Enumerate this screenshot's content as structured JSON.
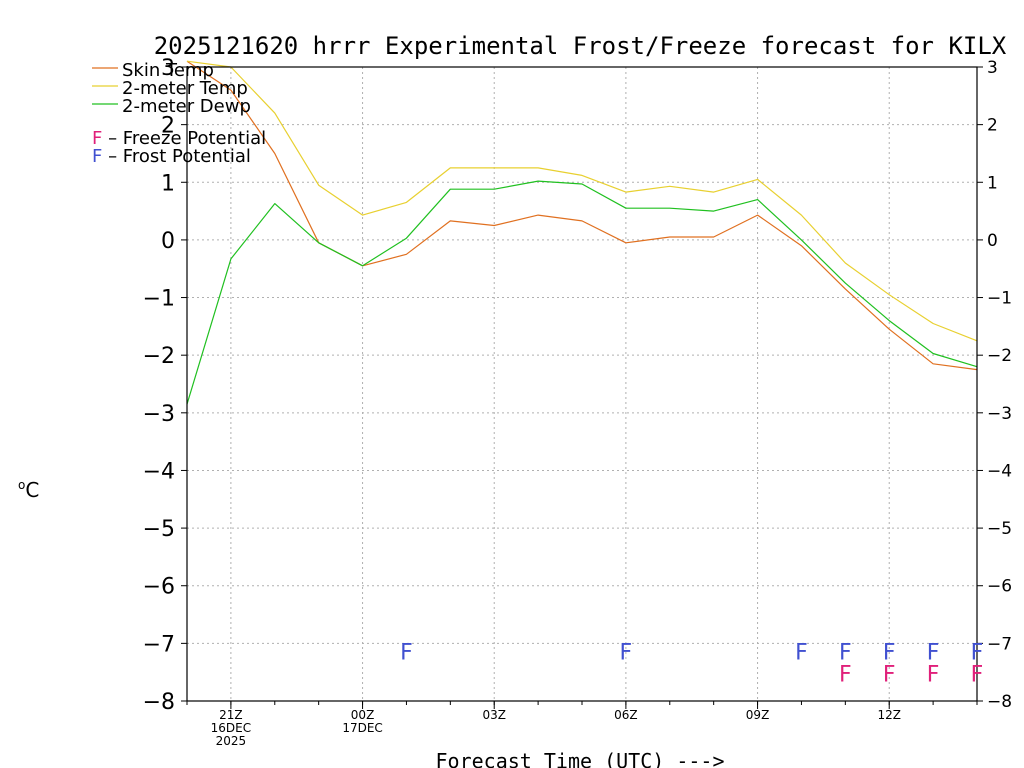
{
  "chart_data": {
    "type": "line",
    "title": "2025121620 hrrr Experimental Frost/Freeze forecast for KILX",
    "xlabel": "Forecast Time (UTC) --->",
    "ylabel_unit": "C",
    "ylabel_degree": "o",
    "ylim": [
      -8,
      3
    ],
    "yticks": [
      3,
      2,
      1,
      0,
      -1,
      -2,
      -3,
      -4,
      -5,
      -6,
      -7,
      -8
    ],
    "ytick_labels": [
      "3",
      "2",
      "1",
      "0",
      "−1",
      "−2",
      "−3",
      "−4",
      "−5",
      "−6",
      "−7",
      "−8"
    ],
    "xlim": [
      0,
      18
    ],
    "x_hours": [
      0,
      1,
      2,
      3,
      4,
      5,
      6,
      7,
      8,
      9,
      10,
      11,
      12,
      13,
      14,
      15,
      16,
      17,
      18
    ],
    "xticks": [
      {
        "hour": 1,
        "lines": [
          "21Z",
          "16DEC",
          "2025"
        ]
      },
      {
        "hour": 4,
        "lines": [
          "00Z",
          "17DEC"
        ]
      },
      {
        "hour": 7,
        "lines": [
          "03Z"
        ]
      },
      {
        "hour": 10,
        "lines": [
          "06Z"
        ]
      },
      {
        "hour": 13,
        "lines": [
          "09Z"
        ]
      },
      {
        "hour": 16,
        "lines": [
          "12Z"
        ]
      }
    ],
    "grid": true,
    "series": [
      {
        "name": "Skin Temp",
        "color": "#e07020",
        "values": [
          3.1,
          2.6,
          1.5,
          -0.05,
          -0.45,
          -0.25,
          0.33,
          0.25,
          0.43,
          0.33,
          -0.05,
          0.05,
          0.05,
          0.43,
          -0.1,
          -0.85,
          -1.55,
          -2.15,
          -2.25
        ]
      },
      {
        "name": "2-meter Temp",
        "color": "#e8d030",
        "values": [
          3.1,
          3.0,
          2.2,
          0.95,
          0.43,
          0.65,
          1.25,
          1.25,
          1.25,
          1.12,
          0.83,
          0.93,
          0.83,
          1.05,
          0.43,
          -0.4,
          -0.95,
          -1.45,
          -1.75
        ]
      },
      {
        "name": "2-meter Dewp",
        "color": "#20c020",
        "values": [
          -2.85,
          -0.33,
          0.63,
          -0.05,
          -0.45,
          0.03,
          0.88,
          0.88,
          1.02,
          0.97,
          0.55,
          0.55,
          0.5,
          0.7,
          0.0,
          -0.75,
          -1.4,
          -1.97,
          -2.2
        ]
      }
    ],
    "legend": {
      "position": "top-left",
      "freeze_letter": "F",
      "freeze_label": " – Freeze Potential",
      "freeze_color": "#e0207a",
      "frost_letter": "F",
      "frost_label": " – Frost Potential",
      "frost_color": "#4050d0"
    },
    "frost_markers": [
      5,
      10,
      14,
      15,
      16,
      17,
      18
    ],
    "freeze_markers": [
      15,
      16,
      17,
      18
    ],
    "marker_letter": "F"
  }
}
